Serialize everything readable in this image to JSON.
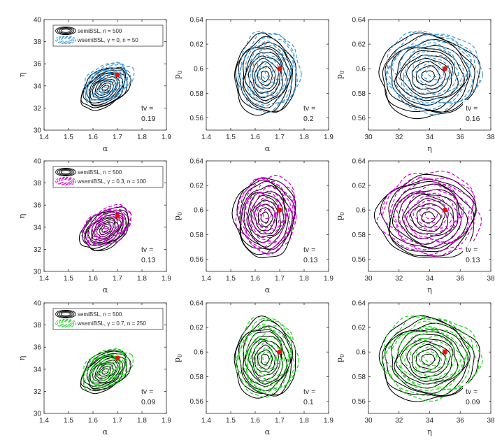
{
  "chart_data": [
    {
      "id": "r1c1",
      "type": "contour",
      "x_param": "α",
      "y_param": "η",
      "xlim": [
        1.4,
        1.9
      ],
      "ylim": [
        30,
        40
      ],
      "xticks": [
        "1.4",
        "1.5",
        "1.6",
        "1.7",
        "1.8",
        "1.9"
      ],
      "yticks": [
        "30",
        "32",
        "34",
        "36",
        "38",
        "40"
      ],
      "xlabel": "α",
      "ylabel": "η",
      "series": [
        {
          "name": "semiBSL, n = 500",
          "style": "solid",
          "color": "#000000"
        },
        {
          "name": "wsemiBSL, γ = 0, n = 50",
          "style": "dashed",
          "color": "#3a9ad9"
        }
      ],
      "true_value": [
        1.7,
        35
      ],
      "center": [
        1.65,
        33.8
      ],
      "spread": [
        0.09,
        2.3
      ],
      "angle": 35,
      "offset": [
        0.01,
        0.5
      ],
      "tv": "0.19",
      "legend": "top-left"
    },
    {
      "id": "r1c2",
      "type": "contour",
      "x_param": "α",
      "y_param": "p₀",
      "xlim": [
        1.4,
        1.9
      ],
      "ylim": [
        0.55,
        0.64
      ],
      "xticks": [
        "1.4",
        "1.5",
        "1.6",
        "1.7",
        "1.8",
        "1.9"
      ],
      "yticks": [
        "0.56",
        "0.58",
        "0.6",
        "0.62",
        "0.64"
      ],
      "xlabel": "α",
      "ylabel": "p",
      "ylabel_sub": "0",
      "series": [
        {
          "name": "semiBSL, n = 500",
          "style": "solid",
          "color": "#000000"
        },
        {
          "name": "wsemiBSL, γ = 0, n = 50",
          "style": "dashed",
          "color": "#3a9ad9"
        }
      ],
      "true_value": [
        1.7,
        0.6
      ],
      "center": [
        1.64,
        0.594
      ],
      "spread": [
        0.1,
        0.026
      ],
      "angle": 0,
      "offset": [
        0.015,
        0.004
      ],
      "tv": "0.2"
    },
    {
      "id": "r1c3",
      "type": "contour",
      "x_param": "η",
      "y_param": "p₀",
      "xlim": [
        30,
        38
      ],
      "ylim": [
        0.55,
        0.64
      ],
      "xticks": [
        "30",
        "32",
        "34",
        "36",
        "38"
      ],
      "yticks": [
        "0.56",
        "0.58",
        "0.6",
        "0.62",
        "0.64"
      ],
      "xlabel": "η",
      "ylabel": "p",
      "ylabel_sub": "0",
      "series": [
        {
          "name": "semiBSL, n = 500",
          "style": "solid",
          "color": "#000000"
        },
        {
          "name": "wsemiBSL, γ = 0, n = 50",
          "style": "dashed",
          "color": "#3a9ad9"
        }
      ],
      "true_value": [
        35,
        0.6
      ],
      "center": [
        33.9,
        0.594
      ],
      "spread": [
        2.6,
        0.027
      ],
      "angle": 0,
      "offset": [
        0.3,
        0.004
      ],
      "tv": "0.16"
    },
    {
      "id": "r2c1",
      "type": "contour",
      "x_param": "α",
      "y_param": "η",
      "xlim": [
        1.4,
        1.9
      ],
      "ylim": [
        30,
        40
      ],
      "xticks": [
        "1.4",
        "1.5",
        "1.6",
        "1.7",
        "1.8",
        "1.9"
      ],
      "yticks": [
        "30",
        "32",
        "34",
        "36",
        "38",
        "40"
      ],
      "xlabel": "α",
      "ylabel": "η",
      "series": [
        {
          "name": "semiBSL, n = 500",
          "style": "solid",
          "color": "#000000"
        },
        {
          "name": "wsemiBSL, γ = 0.3, n = 100",
          "style": "dashed",
          "color": "#d400d4"
        }
      ],
      "true_value": [
        1.7,
        35
      ],
      "center": [
        1.65,
        33.8
      ],
      "spread": [
        0.09,
        2.3
      ],
      "angle": 35,
      "offset": [
        0.008,
        0.3
      ],
      "tv": "0.13",
      "legend": "top-left"
    },
    {
      "id": "r2c2",
      "type": "contour",
      "x_param": "α",
      "y_param": "p₀",
      "xlim": [
        1.4,
        1.9
      ],
      "ylim": [
        0.55,
        0.64
      ],
      "xticks": [
        "1.4",
        "1.5",
        "1.6",
        "1.7",
        "1.8",
        "1.9"
      ],
      "yticks": [
        "0.56",
        "0.58",
        "0.6",
        "0.62",
        "0.64"
      ],
      "xlabel": "α",
      "ylabel": "p",
      "ylabel_sub": "0",
      "series": [
        {
          "name": "semiBSL, n = 500",
          "style": "solid",
          "color": "#000000"
        },
        {
          "name": "wsemiBSL, γ = 0.3, n = 100",
          "style": "dashed",
          "color": "#d400d4"
        }
      ],
      "true_value": [
        1.7,
        0.6
      ],
      "center": [
        1.64,
        0.594
      ],
      "spread": [
        0.1,
        0.026
      ],
      "angle": 0,
      "offset": [
        0.01,
        0.003
      ],
      "tv": "0.13"
    },
    {
      "id": "r2c3",
      "type": "contour",
      "x_param": "η",
      "y_param": "p₀",
      "xlim": [
        30,
        38
      ],
      "ylim": [
        0.55,
        0.64
      ],
      "xticks": [
        "30",
        "32",
        "34",
        "36",
        "38"
      ],
      "yticks": [
        "0.56",
        "0.58",
        "0.6",
        "0.62",
        "0.64"
      ],
      "xlabel": "η",
      "ylabel": "p",
      "ylabel_sub": "0",
      "series": [
        {
          "name": "semiBSL, n = 500",
          "style": "solid",
          "color": "#000000"
        },
        {
          "name": "wsemiBSL, γ = 0.3, n = 100",
          "style": "dashed",
          "color": "#d400d4"
        }
      ],
      "true_value": [
        35,
        0.6
      ],
      "center": [
        33.9,
        0.594
      ],
      "spread": [
        2.6,
        0.027
      ],
      "angle": 0,
      "offset": [
        0.2,
        0.003
      ],
      "tv": "0.13"
    },
    {
      "id": "r3c1",
      "type": "contour",
      "x_param": "α",
      "y_param": "η",
      "xlim": [
        1.4,
        1.9
      ],
      "ylim": [
        30,
        40
      ],
      "xticks": [
        "1.4",
        "1.5",
        "1.6",
        "1.7",
        "1.8",
        "1.9"
      ],
      "yticks": [
        "30",
        "32",
        "34",
        "36",
        "38",
        "40"
      ],
      "xlabel": "α",
      "ylabel": "η",
      "series": [
        {
          "name": "semiBSL, n = 500",
          "style": "solid",
          "color": "#000000"
        },
        {
          "name": "wsemiBSL, γ = 0.7, n = 250",
          "style": "dashed",
          "color": "#1fd41f"
        }
      ],
      "true_value": [
        1.7,
        35
      ],
      "center": [
        1.65,
        33.8
      ],
      "spread": [
        0.09,
        2.3
      ],
      "angle": 35,
      "offset": [
        0.005,
        0.2
      ],
      "tv": "0.09",
      "legend": "top-left"
    },
    {
      "id": "r3c2",
      "type": "contour",
      "x_param": "α",
      "y_param": "p₀",
      "xlim": [
        1.4,
        1.9
      ],
      "ylim": [
        0.55,
        0.64
      ],
      "xticks": [
        "1.4",
        "1.5",
        "1.6",
        "1.7",
        "1.8",
        "1.9"
      ],
      "yticks": [
        "0.56",
        "0.58",
        "0.6",
        "0.62",
        "0.64"
      ],
      "xlabel": "α",
      "ylabel": "p",
      "ylabel_sub": "0",
      "series": [
        {
          "name": "semiBSL, n = 500",
          "style": "solid",
          "color": "#000000"
        },
        {
          "name": "wsemiBSL, γ = 0.7, n = 250",
          "style": "dashed",
          "color": "#1fd41f"
        }
      ],
      "true_value": [
        1.7,
        0.6
      ],
      "center": [
        1.64,
        0.594
      ],
      "spread": [
        0.1,
        0.026
      ],
      "angle": 0,
      "offset": [
        0.006,
        0.002
      ],
      "tv": "0.1"
    },
    {
      "id": "r3c3",
      "type": "contour",
      "x_param": "η",
      "y_param": "p₀",
      "xlim": [
        30,
        38
      ],
      "ylim": [
        0.55,
        0.64
      ],
      "xticks": [
        "30",
        "32",
        "34",
        "36",
        "38"
      ],
      "yticks": [
        "0.56",
        "0.58",
        "0.6",
        "0.62",
        "0.64"
      ],
      "xlabel": "η",
      "ylabel": "p",
      "ylabel_sub": "0",
      "series": [
        {
          "name": "semiBSL, n = 500",
          "style": "solid",
          "color": "#000000"
        },
        {
          "name": "wsemiBSL, γ = 0.7, n = 250",
          "style": "dashed",
          "color": "#1fd41f"
        }
      ],
      "true_value": [
        35,
        0.6
      ],
      "center": [
        33.9,
        0.594
      ],
      "spread": [
        2.6,
        0.027
      ],
      "angle": 0,
      "offset": [
        0.15,
        0.002
      ],
      "tv": "0.09"
    }
  ],
  "tv_prefix": "tv =",
  "true_value_color": "#e8120c"
}
